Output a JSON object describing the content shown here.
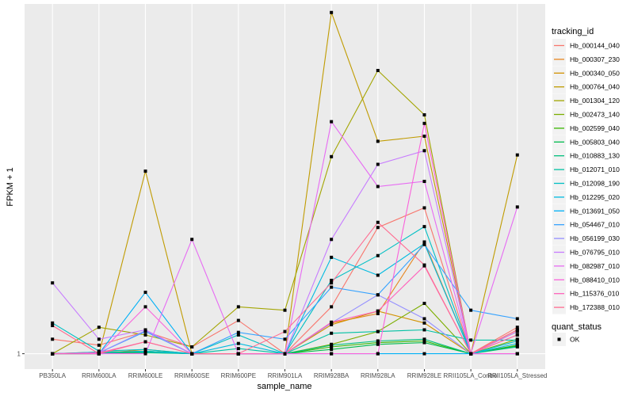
{
  "chart_data": {
    "type": "line",
    "title": "",
    "xlabel": "sample_name",
    "ylabel": "FPKM + 1",
    "y_scale": "log10",
    "y_value_units": "log10(FPKM + 1), estimated",
    "ylim": [
      -0.18,
      4.1
    ],
    "y_ticks": [
      {
        "value": 0,
        "label": "1"
      }
    ],
    "grid": true,
    "categories": [
      "PB350LA",
      "RRIM600LA",
      "RRIM600LE",
      "RRIM600SE",
      "RRIM600PE",
      "RRIM901LA",
      "RRIM928BA",
      "RRIM928LA",
      "RRIM928LE",
      "RRII105LA_Control",
      "RRII105LA_Stressed"
    ],
    "legend": {
      "position": "right",
      "color_title": "tracking_id",
      "shape_title": "quant_status",
      "shape_items": [
        {
          "label": "OK",
          "symbol": "square"
        }
      ]
    },
    "series": [
      {
        "name": "Hb_000144_040",
        "color": "#F8766D",
        "values": [
          0.17,
          0.1,
          0.26,
          0.08,
          0.39,
          0.0,
          0.55,
          1.48,
          1.71,
          0.0,
          0.31
        ]
      },
      {
        "name": "Hb_000307_230",
        "color": "#E7851E",
        "values": [
          0.0,
          0.0,
          0.05,
          0.0,
          0.0,
          0.0,
          0.36,
          0.47,
          1.31,
          0.0,
          0.28
        ]
      },
      {
        "name": "Hb_000340_050",
        "color": "#D39200",
        "values": [
          0.0,
          0.0,
          0.02,
          0.0,
          0.0,
          0.0,
          0.34,
          0.5,
          0.36,
          0.0,
          0.22
        ]
      },
      {
        "name": "Hb_000764_040",
        "color": "#C09B00",
        "values": [
          0.0,
          0.0,
          2.14,
          0.0,
          0.0,
          0.0,
          4.0,
          2.49,
          2.55,
          0.0,
          2.33
        ]
      },
      {
        "name": "Hb_001304_120",
        "color": "#A3A500",
        "values": [
          0.0,
          0.31,
          0.22,
          0.08,
          0.55,
          0.51,
          2.31,
          3.32,
          2.8,
          0.0,
          0.26
        ]
      },
      {
        "name": "Hb_002473_140",
        "color": "#7CAE00",
        "values": [
          0.0,
          0.02,
          0.03,
          0.0,
          0.0,
          0.0,
          0.11,
          0.26,
          0.59,
          0.0,
          0.17
        ]
      },
      {
        "name": "Hb_002599_040",
        "color": "#39B600",
        "values": [
          0.0,
          0.01,
          0.02,
          0.0,
          0.0,
          0.0,
          0.08,
          0.13,
          0.15,
          0.0,
          0.1
        ]
      },
      {
        "name": "Hb_005803_040",
        "color": "#00BB4E",
        "values": [
          0.0,
          0.0,
          0.01,
          0.0,
          0.0,
          0.0,
          0.05,
          0.11,
          0.13,
          0.0,
          0.09
        ]
      },
      {
        "name": "Hb_010883_130",
        "color": "#00BF7D",
        "values": [
          0.0,
          0.01,
          0.03,
          0.0,
          0.0,
          0.0,
          0.1,
          0.15,
          0.17,
          0.0,
          0.08
        ]
      },
      {
        "name": "Hb_012071_010",
        "color": "#00C1A3",
        "values": [
          0.0,
          0.01,
          0.03,
          0.0,
          0.06,
          0.0,
          0.24,
          0.26,
          0.28,
          0.16,
          0.16
        ]
      },
      {
        "name": "Hb_012098_190",
        "color": "#00BFC4",
        "values": [
          0.36,
          0.03,
          0.05,
          0.0,
          0.22,
          0.0,
          0.86,
          1.15,
          1.49,
          0.0,
          0.15
        ]
      },
      {
        "name": "Hb_012295_020",
        "color": "#00BAE0",
        "values": [
          0.0,
          0.02,
          0.02,
          0.0,
          0.12,
          0.0,
          1.13,
          0.92,
          1.29,
          0.0,
          0.12
        ]
      },
      {
        "name": "Hb_013691_050",
        "color": "#00B0F6",
        "values": [
          0.0,
          0.0,
          0.72,
          0.0,
          0.0,
          0.0,
          0.0,
          0.0,
          0.0,
          0.0,
          0.0
        ]
      },
      {
        "name": "Hb_054467_010",
        "color": "#35A2FF",
        "values": [
          0.0,
          0.01,
          0.26,
          0.0,
          0.25,
          0.17,
          0.78,
          0.69,
          1.28,
          0.51,
          0.41
        ]
      },
      {
        "name": "Hb_056199_030",
        "color": "#9590FF",
        "values": [
          0.0,
          0.01,
          0.27,
          0.0,
          0.0,
          0.0,
          0.36,
          0.69,
          0.41,
          0.0,
          0.0
        ]
      },
      {
        "name": "Hb_076795_010",
        "color": "#C77CFF",
        "values": [
          0.83,
          0.17,
          0.28,
          0.0,
          0.0,
          0.0,
          1.34,
          2.22,
          2.38,
          0.0,
          0.26
        ]
      },
      {
        "name": "Hb_082987_010",
        "color": "#E76BF3",
        "values": [
          0.0,
          0.0,
          0.0,
          1.34,
          0.0,
          0.0,
          2.72,
          1.96,
          2.02,
          0.0,
          1.72
        ]
      },
      {
        "name": "Hb_088410_010",
        "color": "#FA62DB",
        "values": [
          0.0,
          0.0,
          0.55,
          0.0,
          0.0,
          0.0,
          0.0,
          0.0,
          2.7,
          0.0,
          0.0
        ]
      },
      {
        "name": "Hb_115376_010",
        "color": "#FF62BC",
        "values": [
          0.0,
          0.01,
          0.14,
          0.0,
          0.0,
          0.0,
          0.37,
          0.5,
          1.03,
          0.0,
          0.22
        ]
      },
      {
        "name": "Hb_172388_010",
        "color": "#FF6C91",
        "values": [
          0.33,
          0.0,
          0.14,
          0.0,
          0.0,
          0.26,
          0.83,
          1.54,
          1.04,
          0.0,
          0.28
        ]
      }
    ]
  }
}
